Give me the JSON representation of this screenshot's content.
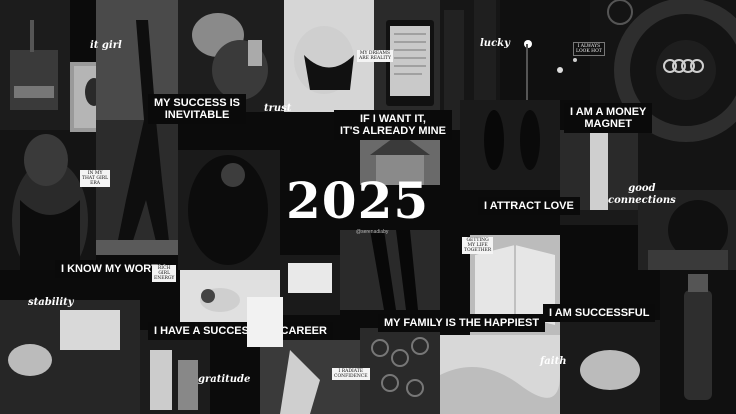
{
  "year": "2025",
  "credit": "@serenadiaby",
  "affirmations": {
    "success": "MY SUCCESS IS\nINEVITABLE",
    "want_it": "IF I WANT IT,\nIT'S ALREADY MINE",
    "money": "I AM A MONEY\nMAGNET",
    "love": "I ATTRACT LOVE",
    "worth": "I KNOW MY WORTH",
    "career": "I HAVE A SUCCESSFUL CAREER",
    "family": "MY FAMILY IS THE HAPPIEST",
    "successful": "I AM SUCCESSFUL"
  },
  "words": {
    "it_girl": "it girl",
    "trust": "trust",
    "lucky": "lucky",
    "good_connections": "good\nconnections",
    "stability": "stability",
    "gratitude": "gratitude",
    "faith": "faith"
  },
  "small_cards": {
    "always_look_hot": "I ALWAYS\nLOOK HOT",
    "dreams_reality": "MY DREAMS\nARE REALITY",
    "that_girl_era": "IN MY\nTHAT GIRL\nERA",
    "rich_girl": "RICH\nGIRL\nENERGY",
    "getting_together": "GETTING\nMY LIFE\nTOGETHER",
    "radiate_confidence": "I RADIATE\nCONFIDENCE"
  },
  "brand": {
    "steering_logo": "four-ring-logo"
  },
  "colors": {
    "background": "#0b0b0b",
    "label_bg": "#0a0a0a",
    "label_text": "#ffffff"
  }
}
